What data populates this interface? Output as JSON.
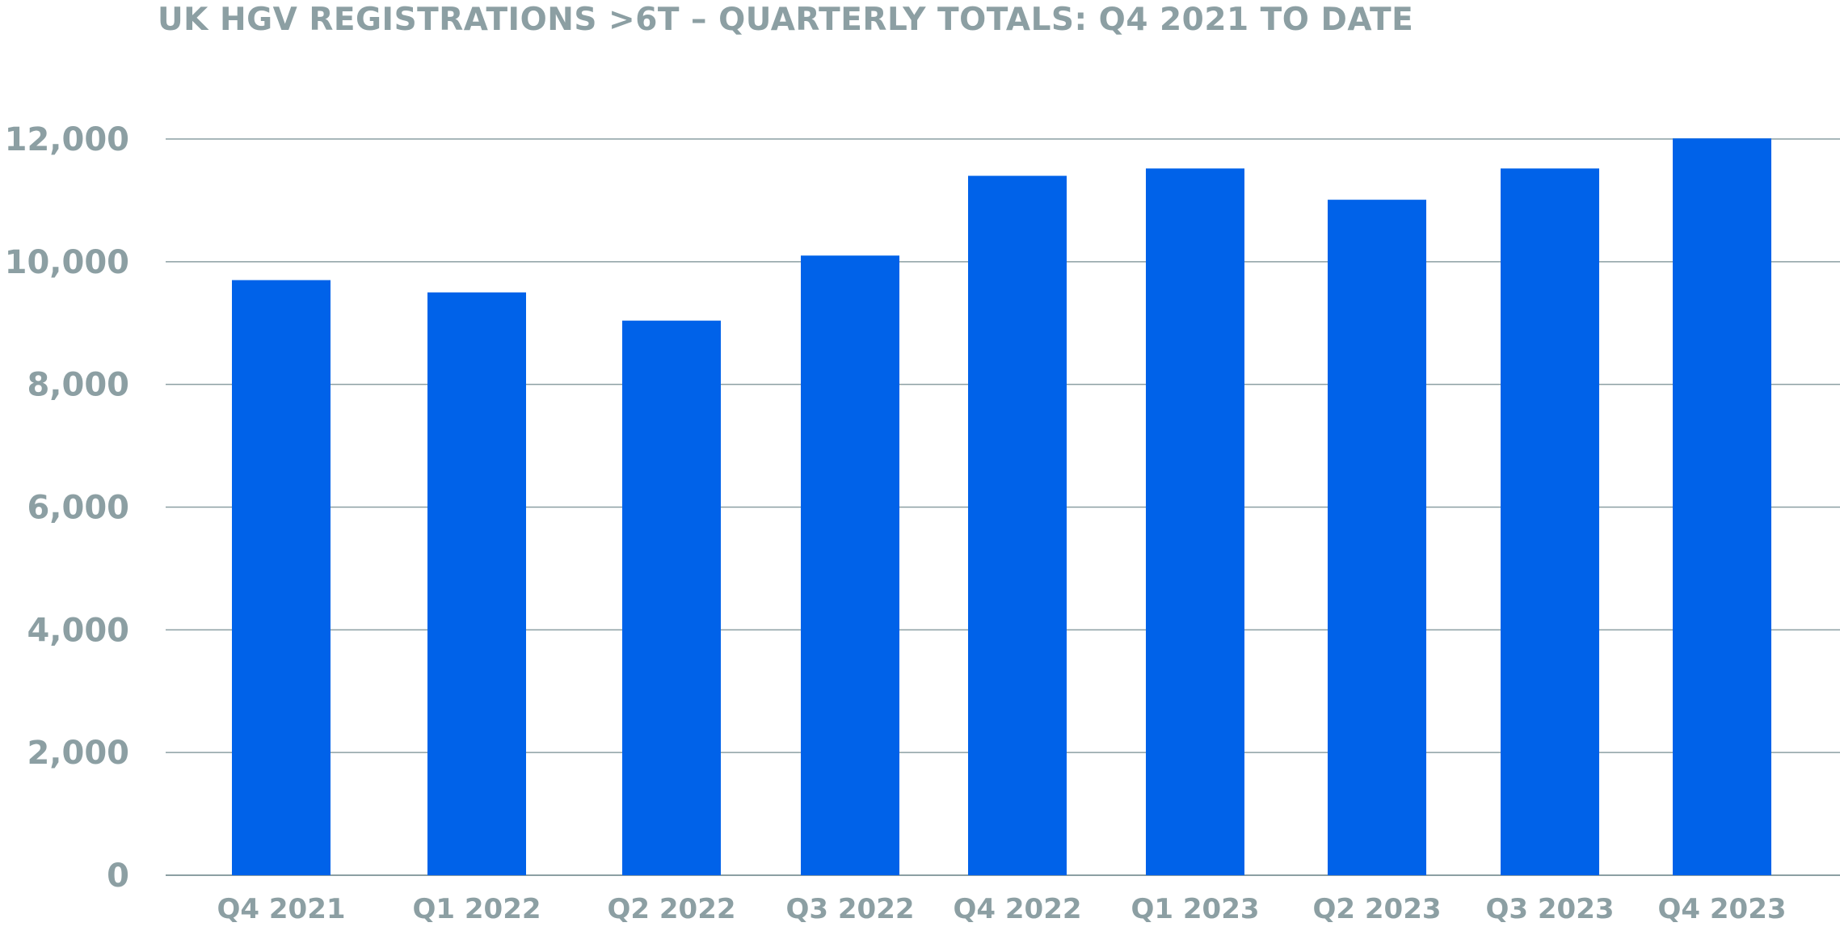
{
  "chart_data": {
    "type": "bar",
    "title": "UK HGV REGISTRATIONS >6T – QUARTERLY TOTALS: Q4 2021 TO DATE",
    "xlabel": "",
    "ylabel": "",
    "categories": [
      "Q4 2021",
      "Q1 2022",
      "Q2 2022",
      "Q3 2022",
      "Q4 2022",
      "Q1 2023",
      "Q2 2023",
      "Q3 2023",
      "Q4 2023"
    ],
    "values": [
      9700,
      9500,
      9040,
      10100,
      11400,
      11520,
      11010,
      11520,
      12010
    ],
    "ylim": [
      0,
      12000
    ],
    "yticks": [
      0,
      2000,
      4000,
      6000,
      8000,
      10000,
      12000
    ],
    "ytick_labels": [
      "0",
      "2,000",
      "4,000",
      "6,000",
      "8,000",
      "10,000",
      "12,000"
    ],
    "grid": true,
    "legend": "none",
    "colors": {
      "bar": "#0062e9",
      "text": "#8c9fa3",
      "grid": "#8c9fa3"
    }
  }
}
